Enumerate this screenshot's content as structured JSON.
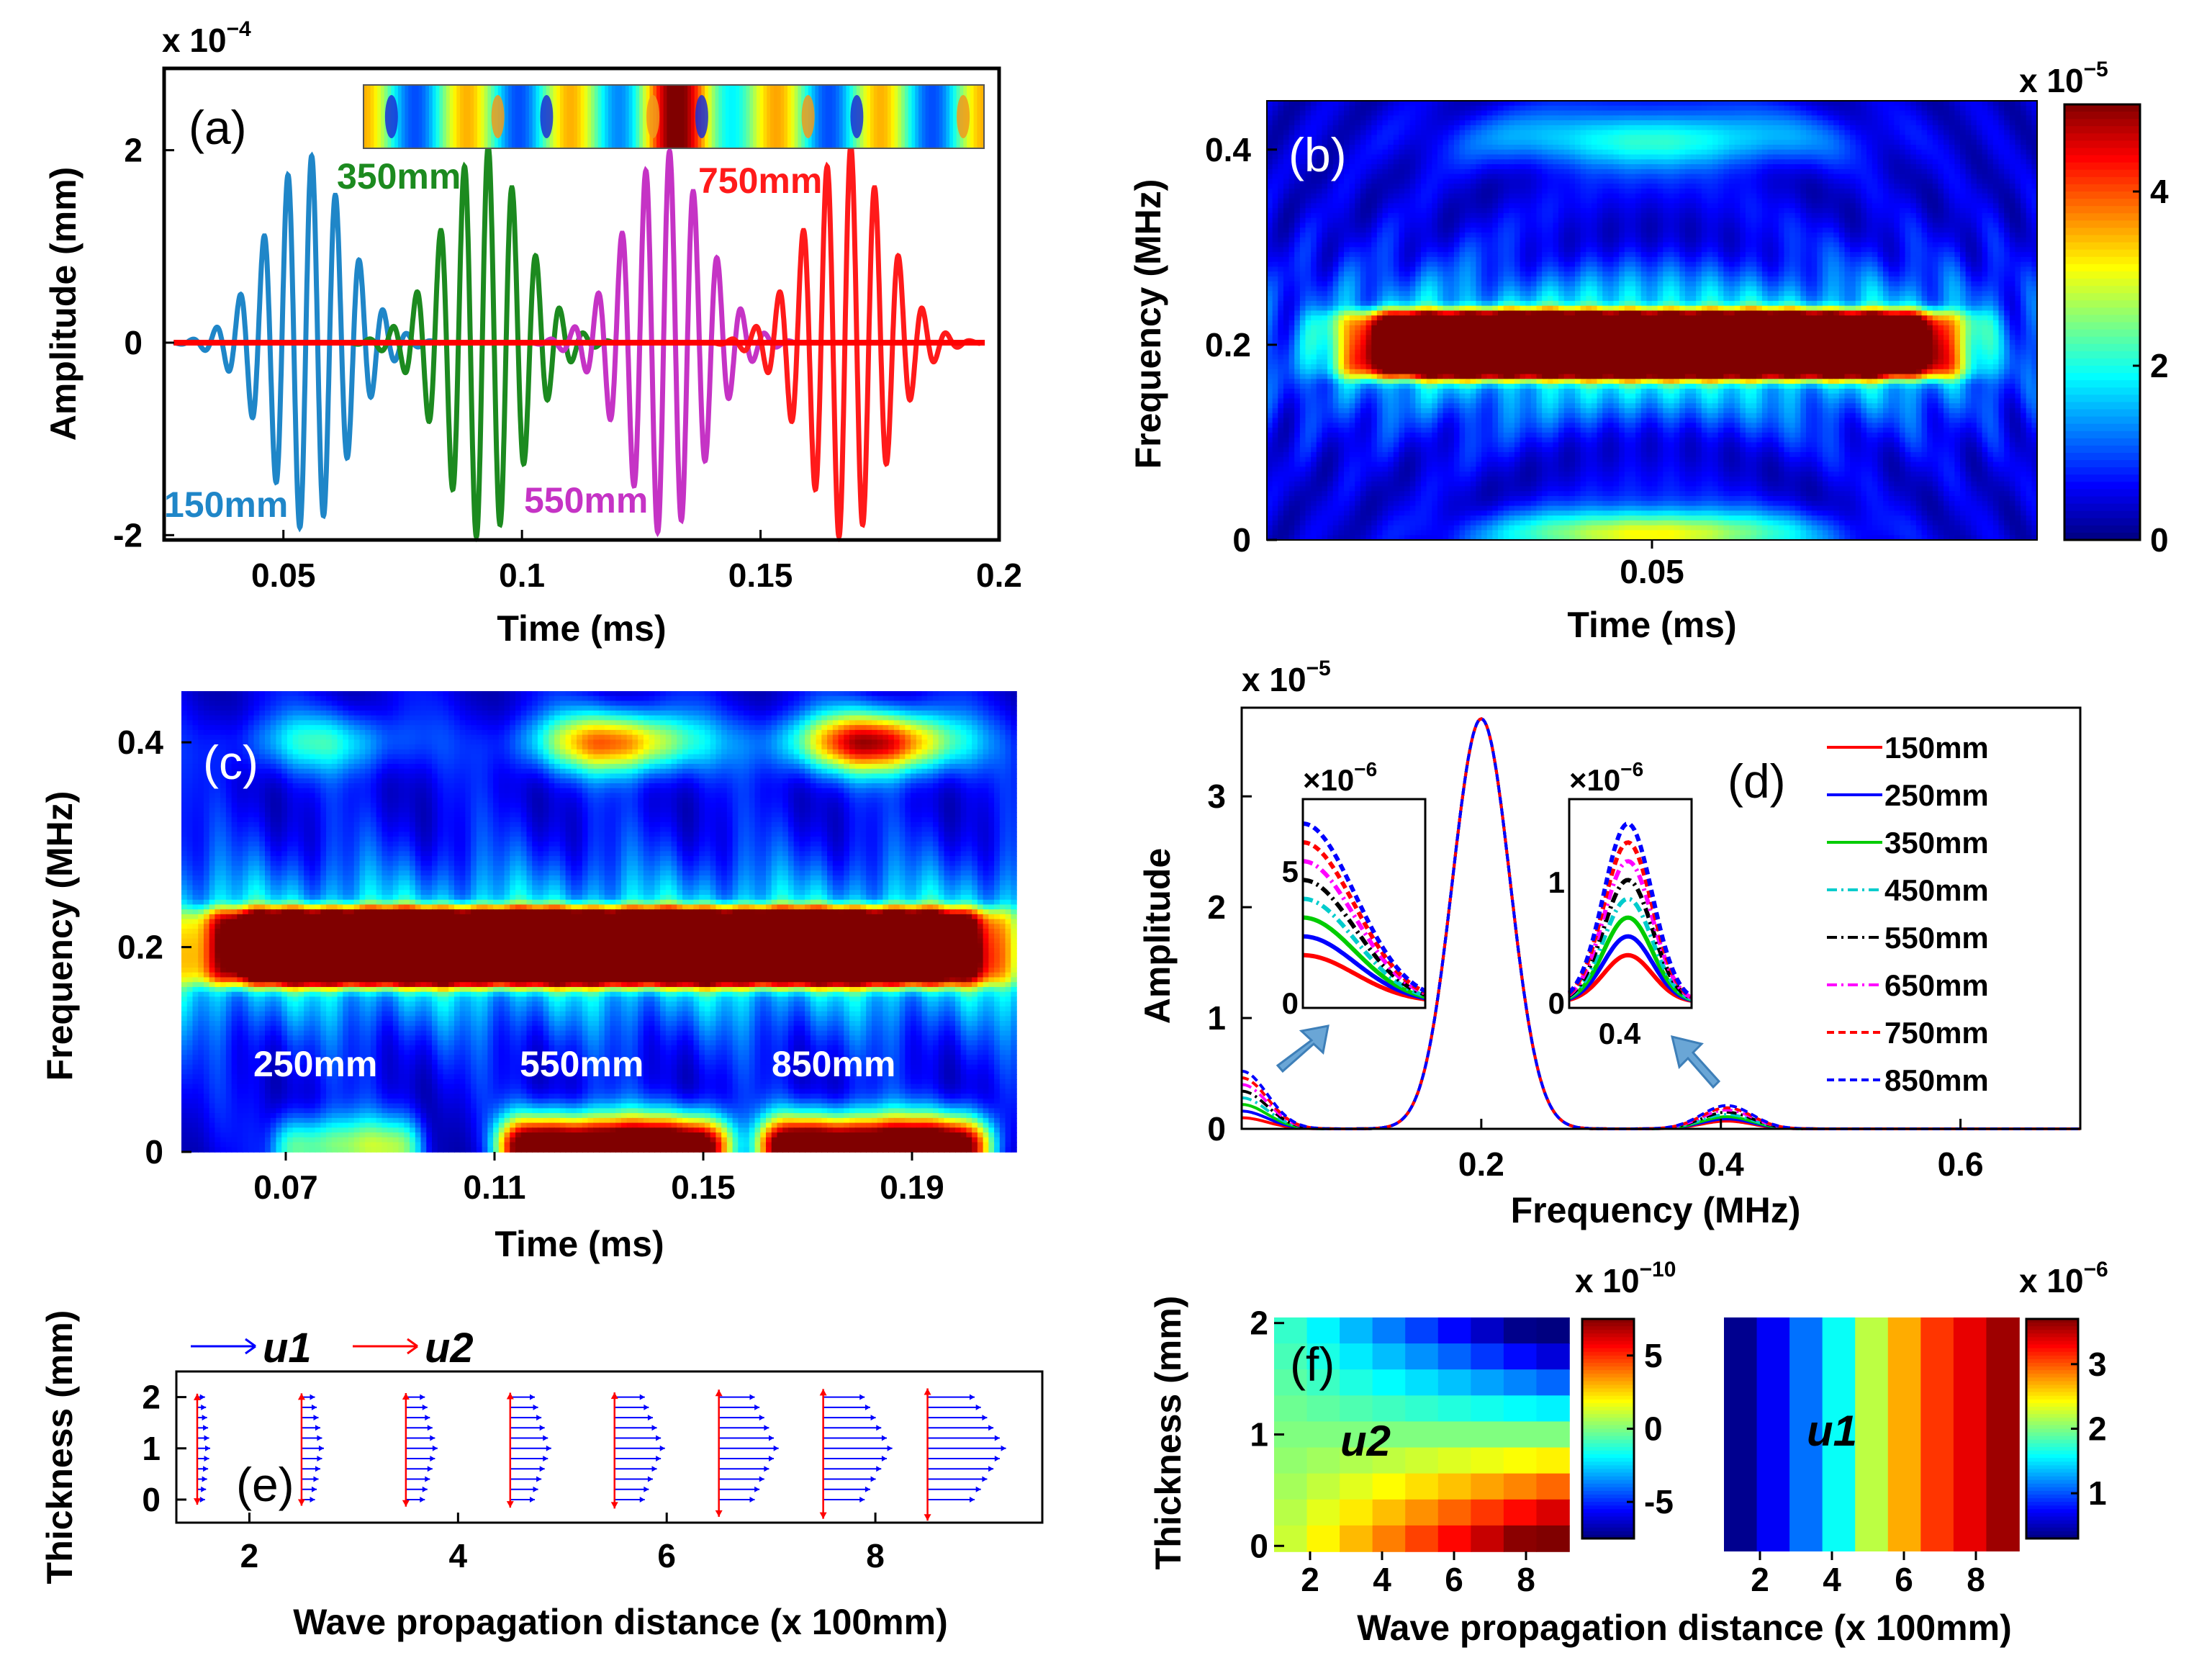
{
  "panels": {
    "a": {
      "label": "(a)"
    },
    "b": {
      "label": "(b)"
    },
    "c": {
      "label": "(c)"
    },
    "d": {
      "label": "(d)"
    },
    "e": {
      "label": "(e)"
    },
    "f": {
      "label": "(f)"
    }
  },
  "chart_data": [
    {
      "id": "a",
      "type": "line",
      "xlabel": "Time (ms)",
      "ylabel": "Amplitude (mm)",
      "exponent": "x 10",
      "exponent_power": "−4",
      "xlim": [
        0.025,
        0.2
      ],
      "ylim": [
        -2.05,
        2.85
      ],
      "xticks": [
        "0.05",
        "0.1",
        "0.15",
        "0.2"
      ],
      "xtick_values": [
        0.05,
        0.1,
        0.15,
        0.2
      ],
      "yticks": [
        "-2",
        "0",
        "2"
      ],
      "ytick_values": [
        -2,
        0,
        2
      ],
      "series": [
        {
          "name": "150mm",
          "color": "#1f86c8",
          "center": 0.055,
          "f0": 200,
          "amp": 1.95
        },
        {
          "name": "350mm",
          "color": "#1c8a1f",
          "center": 0.092,
          "f0": 200,
          "amp": 2.05
        },
        {
          "name": "550mm",
          "color": "#c533c5",
          "center": 0.13,
          "f0": 200,
          "amp": 2.0
        },
        {
          "name": "750mm",
          "color": "#ff1a1a",
          "center": 0.168,
          "f0": 200,
          "amp": 2.05
        }
      ],
      "baseline_color": "#ff0000",
      "inset": "colorbar-strip"
    },
    {
      "id": "b",
      "type": "heatmap",
      "xlabel": "Time (ms)",
      "ylabel": "Frequency (MHz)",
      "xticks": [
        "0.05"
      ],
      "xtick_values": [
        0.05
      ],
      "xlim": [
        0.0,
        0.1
      ],
      "yticks": [
        "0",
        "0.2",
        "0.4"
      ],
      "ytick_values": [
        0,
        0.2,
        0.4
      ],
      "ylim": [
        0,
        0.45
      ],
      "colorbar": {
        "exponent": "x 10",
        "exponent_power": "−5",
        "ticks": [
          "0",
          "2",
          "4"
        ],
        "tick_values": [
          0,
          2,
          4
        ],
        "range": [
          0,
          5
        ]
      }
    },
    {
      "id": "c",
      "type": "heatmap",
      "xlabel": "Time (ms)",
      "ylabel": "Frequency (MHz)",
      "xticks": [
        "0.07",
        "0.11",
        "0.15",
        "0.19"
      ],
      "xtick_values": [
        0.07,
        0.11,
        0.15,
        0.19
      ],
      "xlim": [
        0.05,
        0.21
      ],
      "yticks": [
        "0",
        "0.2",
        "0.4"
      ],
      "ytick_values": [
        0,
        0.2,
        0.4
      ],
      "ylim": [
        0,
        0.45
      ],
      "annotations": [
        "250mm",
        "550mm",
        "850mm"
      ]
    },
    {
      "id": "d",
      "type": "line",
      "xlabel": "Frequency (MHz)",
      "ylabel": "Amplitude",
      "exponent": "x 10",
      "exponent_power": "−5",
      "xlim": [
        0,
        0.7
      ],
      "ylim": [
        0,
        3.8
      ],
      "xticks": [
        "0.2",
        "0.4",
        "0.6"
      ],
      "xtick_values": [
        0.2,
        0.4,
        0.6
      ],
      "yticks": [
        "0",
        "1",
        "2",
        "3"
      ],
      "ytick_values": [
        0,
        1,
        2,
        3
      ],
      "series": [
        {
          "name": "150mm",
          "color": "#ff0000",
          "dash": ""
        },
        {
          "name": "250mm",
          "color": "#0000ff",
          "dash": ""
        },
        {
          "name": "350mm",
          "color": "#00cc00",
          "dash": ""
        },
        {
          "name": "450mm",
          "color": "#00cccc",
          "dash": "14,6,3,6"
        },
        {
          "name": "550mm",
          "color": "#000000",
          "dash": "14,6,3,6"
        },
        {
          "name": "650mm",
          "color": "#ff00ff",
          "dash": "14,6,3,6"
        },
        {
          "name": "750mm",
          "color": "#ff0000",
          "dash": "10,6"
        },
        {
          "name": "850mm",
          "color": "#0000ff",
          "dash": "10,6"
        }
      ],
      "insets": [
        {
          "exponent": "×10",
          "exponent_power": "−6",
          "yticks": [
            "0",
            "5"
          ],
          "ytick_values": [
            0,
            5
          ]
        },
        {
          "exponent": "×10",
          "exponent_power": "−6",
          "yticks": [
            "0",
            "1"
          ],
          "ytick_values": [
            0,
            1
          ],
          "xticks": [
            "0.4"
          ]
        }
      ]
    },
    {
      "id": "e",
      "type": "quiver",
      "xlabel": "Wave propagation distance (x 100mm)",
      "ylabel": "Thickness (mm)",
      "xlim": [
        1.3,
        9.6
      ],
      "ylim": [
        -0.45,
        2.5
      ],
      "xticks": [
        "2",
        "4",
        "6",
        "8"
      ],
      "xtick_values": [
        2,
        4,
        6,
        8
      ],
      "yticks": [
        "0",
        "1",
        "2"
      ],
      "ytick_values": [
        0,
        1,
        2
      ],
      "legend": [
        {
          "name": "u1",
          "color": "#0000ff"
        },
        {
          "name": "u2",
          "color": "#ff0000"
        }
      ],
      "stations": [
        1.5,
        2.5,
        3.5,
        4.5,
        5.5,
        6.5,
        7.5,
        8.5
      ]
    },
    {
      "id": "f1",
      "type": "heatmap",
      "xlabel": "Wave propagation distance (x 100mm)",
      "ylabel": "Thickness (mm)",
      "xticks": [
        "2",
        "4",
        "6",
        "8"
      ],
      "xtick_values": [
        2,
        4,
        6,
        8
      ],
      "yticks": [
        "0",
        "1",
        "2"
      ],
      "ytick_values": [
        0,
        1,
        2
      ],
      "field": "u2",
      "colorbar": {
        "exponent": "x 10",
        "exponent_power": "−10",
        "ticks": [
          "-5",
          "0",
          "5"
        ],
        "tick_values": [
          -5,
          0,
          5
        ],
        "range": [
          -7.5,
          7.5
        ]
      }
    },
    {
      "id": "f2",
      "type": "heatmap",
      "xticks": [
        "2",
        "4",
        "6",
        "8"
      ],
      "xtick_values": [
        2,
        4,
        6,
        8
      ],
      "field": "u1",
      "values": [
        0.35,
        0.7,
        1.1,
        1.6,
        2.2,
        2.7,
        3.1,
        3.35,
        3.6
      ],
      "colorbar": {
        "exponent": "x 10",
        "exponent_power": "−6",
        "ticks": [
          "1",
          "2",
          "3"
        ],
        "tick_values": [
          1,
          2,
          3
        ],
        "range": [
          0.3,
          3.7
        ]
      }
    }
  ]
}
